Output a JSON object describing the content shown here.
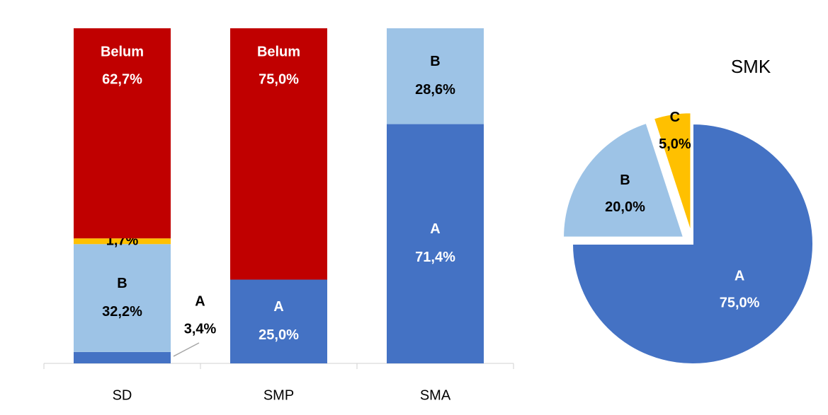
{
  "chart_data": [
    {
      "type": "stacked_bar",
      "categories": [
        "SD",
        "SMP",
        "SMA"
      ],
      "ylim": [
        0,
        100
      ],
      "series": [
        {
          "name": "A",
          "color": "#4472c4",
          "values": [
            3.4,
            25.0,
            71.4
          ],
          "value_labels": [
            "3,4%",
            "25,0%",
            "71,4%"
          ]
        },
        {
          "name": "B",
          "color": "#9dc3e6",
          "values": [
            32.2,
            0,
            28.6
          ],
          "value_labels": [
            "32,2%",
            null,
            "28,6%"
          ]
        },
        {
          "name": "C",
          "color": "#ffc000",
          "values": [
            1.7,
            0,
            0
          ],
          "value_labels": [
            "1,7%",
            null,
            null
          ]
        },
        {
          "name": "Belum",
          "color": "#c00000",
          "values": [
            62.7,
            75.0,
            0
          ],
          "value_labels": [
            "62,7%",
            "75,0%",
            null
          ]
        }
      ]
    },
    {
      "type": "pie",
      "title": "SMK",
      "categories": [
        "A",
        "B",
        "C"
      ],
      "values": [
        75.0,
        20.0,
        5.0
      ],
      "value_labels": [
        "75,0%",
        "20,0%",
        "5,0%"
      ],
      "colors": [
        "#4472c4",
        "#9dc3e6",
        "#ffc000"
      ]
    }
  ]
}
